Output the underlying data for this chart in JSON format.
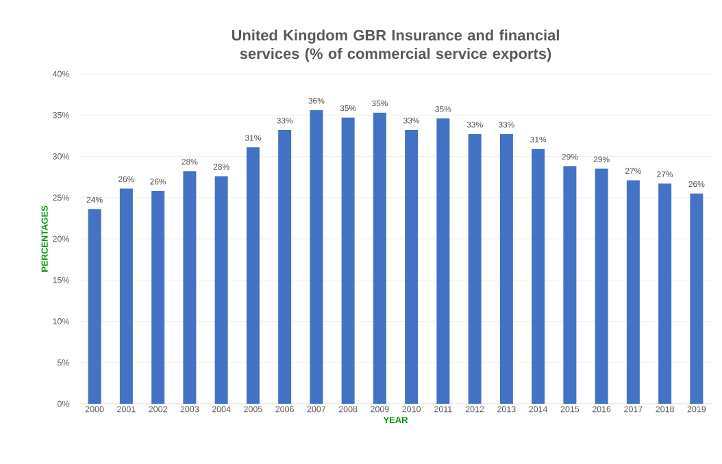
{
  "chart_data": {
    "type": "bar",
    "title": "United Kingdom GBR Insurance and financial services (% of commercial service exports)",
    "xlabel": "YEAR",
    "ylabel": "PERCENTAGES",
    "categories": [
      "2000",
      "2001",
      "2002",
      "2003",
      "2004",
      "2005",
      "2006",
      "2007",
      "2008",
      "2009",
      "2010",
      "2011",
      "2012",
      "2013",
      "2014",
      "2015",
      "2016",
      "2017",
      "2018",
      "2019"
    ],
    "values": [
      23.6,
      26.1,
      25.8,
      28.2,
      27.6,
      31.1,
      33.2,
      35.6,
      34.7,
      35.3,
      33.2,
      34.6,
      32.7,
      32.7,
      30.9,
      28.8,
      28.5,
      27.1,
      26.7,
      25.5
    ],
    "value_labels": [
      "24%",
      "26%",
      "26%",
      "28%",
      "28%",
      "31%",
      "33%",
      "36%",
      "35%",
      "35%",
      "33%",
      "35%",
      "33%",
      "33%",
      "31%",
      "29%",
      "29%",
      "27%",
      "27%",
      "26%"
    ],
    "color": "#4472c4",
    "ylim": [
      0,
      40
    ],
    "yticks": [
      {
        "value": 0,
        "label": "0%"
      },
      {
        "value": 5,
        "label": "5%"
      },
      {
        "value": 10,
        "label": "10%"
      },
      {
        "value": 15,
        "label": "15%"
      },
      {
        "value": 20,
        "label": "20%"
      },
      {
        "value": 25,
        "label": "25%"
      },
      {
        "value": 30,
        "label": "30%"
      },
      {
        "value": 35,
        "label": "35%"
      },
      {
        "value": 40,
        "label": "40%"
      }
    ],
    "grid": "y"
  }
}
